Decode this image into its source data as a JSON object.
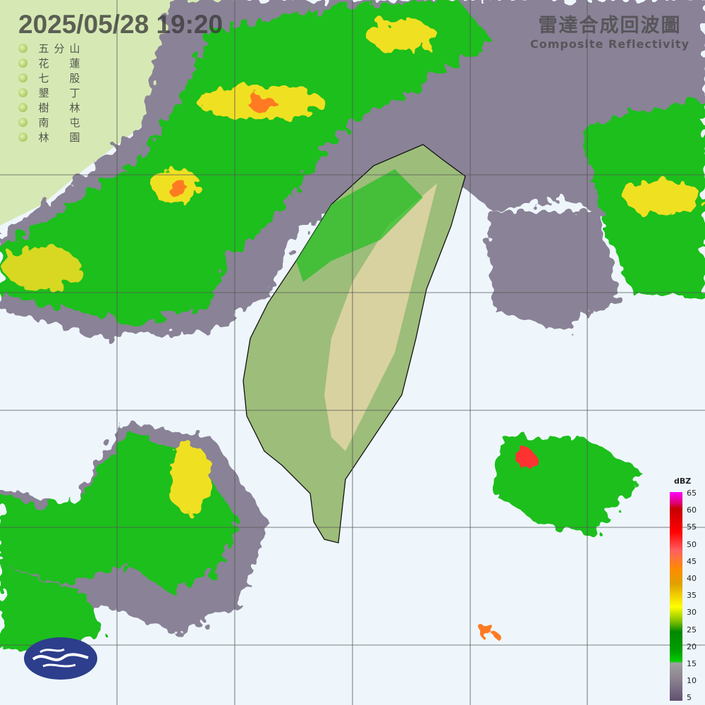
{
  "header": {
    "timestamp": "2025/05/28  19:20"
  },
  "title": {
    "zh": "雷達合成回波圖",
    "en": "Composite Reflectivity"
  },
  "stations": [
    {
      "chars": [
        "五",
        "分",
        "山"
      ]
    },
    {
      "chars": [
        "花",
        "",
        "蓮"
      ]
    },
    {
      "chars": [
        "七",
        "",
        "股"
      ]
    },
    {
      "chars": [
        "墾",
        "",
        "丁"
      ]
    },
    {
      "chars": [
        "樹",
        "",
        "林"
      ]
    },
    {
      "chars": [
        "南",
        "",
        "屯"
      ]
    },
    {
      "chars": [
        "林",
        "",
        "園"
      ]
    }
  ],
  "legend": {
    "unit": "dBZ",
    "ticks": [
      "65",
      "60",
      "55",
      "50",
      "45",
      "40",
      "35",
      "30",
      "25",
      "20",
      "15",
      "10",
      "5"
    ]
  },
  "colors": {
    "sea": "#eef6fc",
    "land": "#9dbd7a",
    "weak_echo": "#8a8296",
    "moderate_echo": "#1fbf1f",
    "strong_echo": "#f0e020",
    "heavy_echo": "#ff7a20",
    "logo": "#2d3e8c"
  },
  "logo": {
    "name": "cwa-logo-icon"
  }
}
